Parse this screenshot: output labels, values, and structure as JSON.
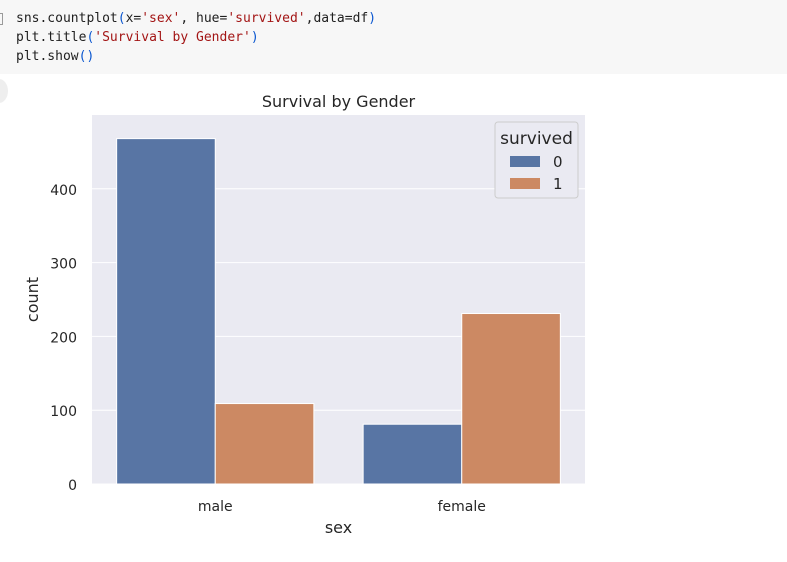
{
  "code_cell": {
    "lines": [
      [
        {
          "t": "sns.countplot",
          "k": "plain"
        },
        {
          "t": "(",
          "k": "paren"
        },
        {
          "t": "x=",
          "k": "plain"
        },
        {
          "t": "'sex'",
          "k": "str"
        },
        {
          "t": ", hue=",
          "k": "plain"
        },
        {
          "t": "'survived'",
          "k": "str"
        },
        {
          "t": ",data=df",
          "k": "plain"
        },
        {
          "t": ")",
          "k": "paren"
        }
      ],
      [
        {
          "t": "plt.title",
          "k": "plain"
        },
        {
          "t": "(",
          "k": "paren"
        },
        {
          "t": "'Survival by Gender'",
          "k": "str"
        },
        {
          "t": ")",
          "k": "paren"
        }
      ],
      [
        {
          "t": "plt.show",
          "k": "plain"
        },
        {
          "t": "()",
          "k": "paren"
        }
      ]
    ]
  },
  "chart_data": {
    "type": "bar",
    "title": "Survival by Gender",
    "xlabel": "sex",
    "ylabel": "count",
    "categories": [
      "male",
      "female"
    ],
    "series": [
      {
        "name": "0",
        "values": [
          468,
          81
        ],
        "color": "#5875a4"
      },
      {
        "name": "1",
        "values": [
          109,
          231
        ],
        "color": "#cc8963"
      }
    ],
    "ylim": [
      0,
      500
    ],
    "yticks": [
      0,
      100,
      200,
      300,
      400
    ],
    "grid": true,
    "background_color": "#eaeaf2",
    "legend": {
      "title": "survived",
      "placement": "top-right"
    }
  }
}
